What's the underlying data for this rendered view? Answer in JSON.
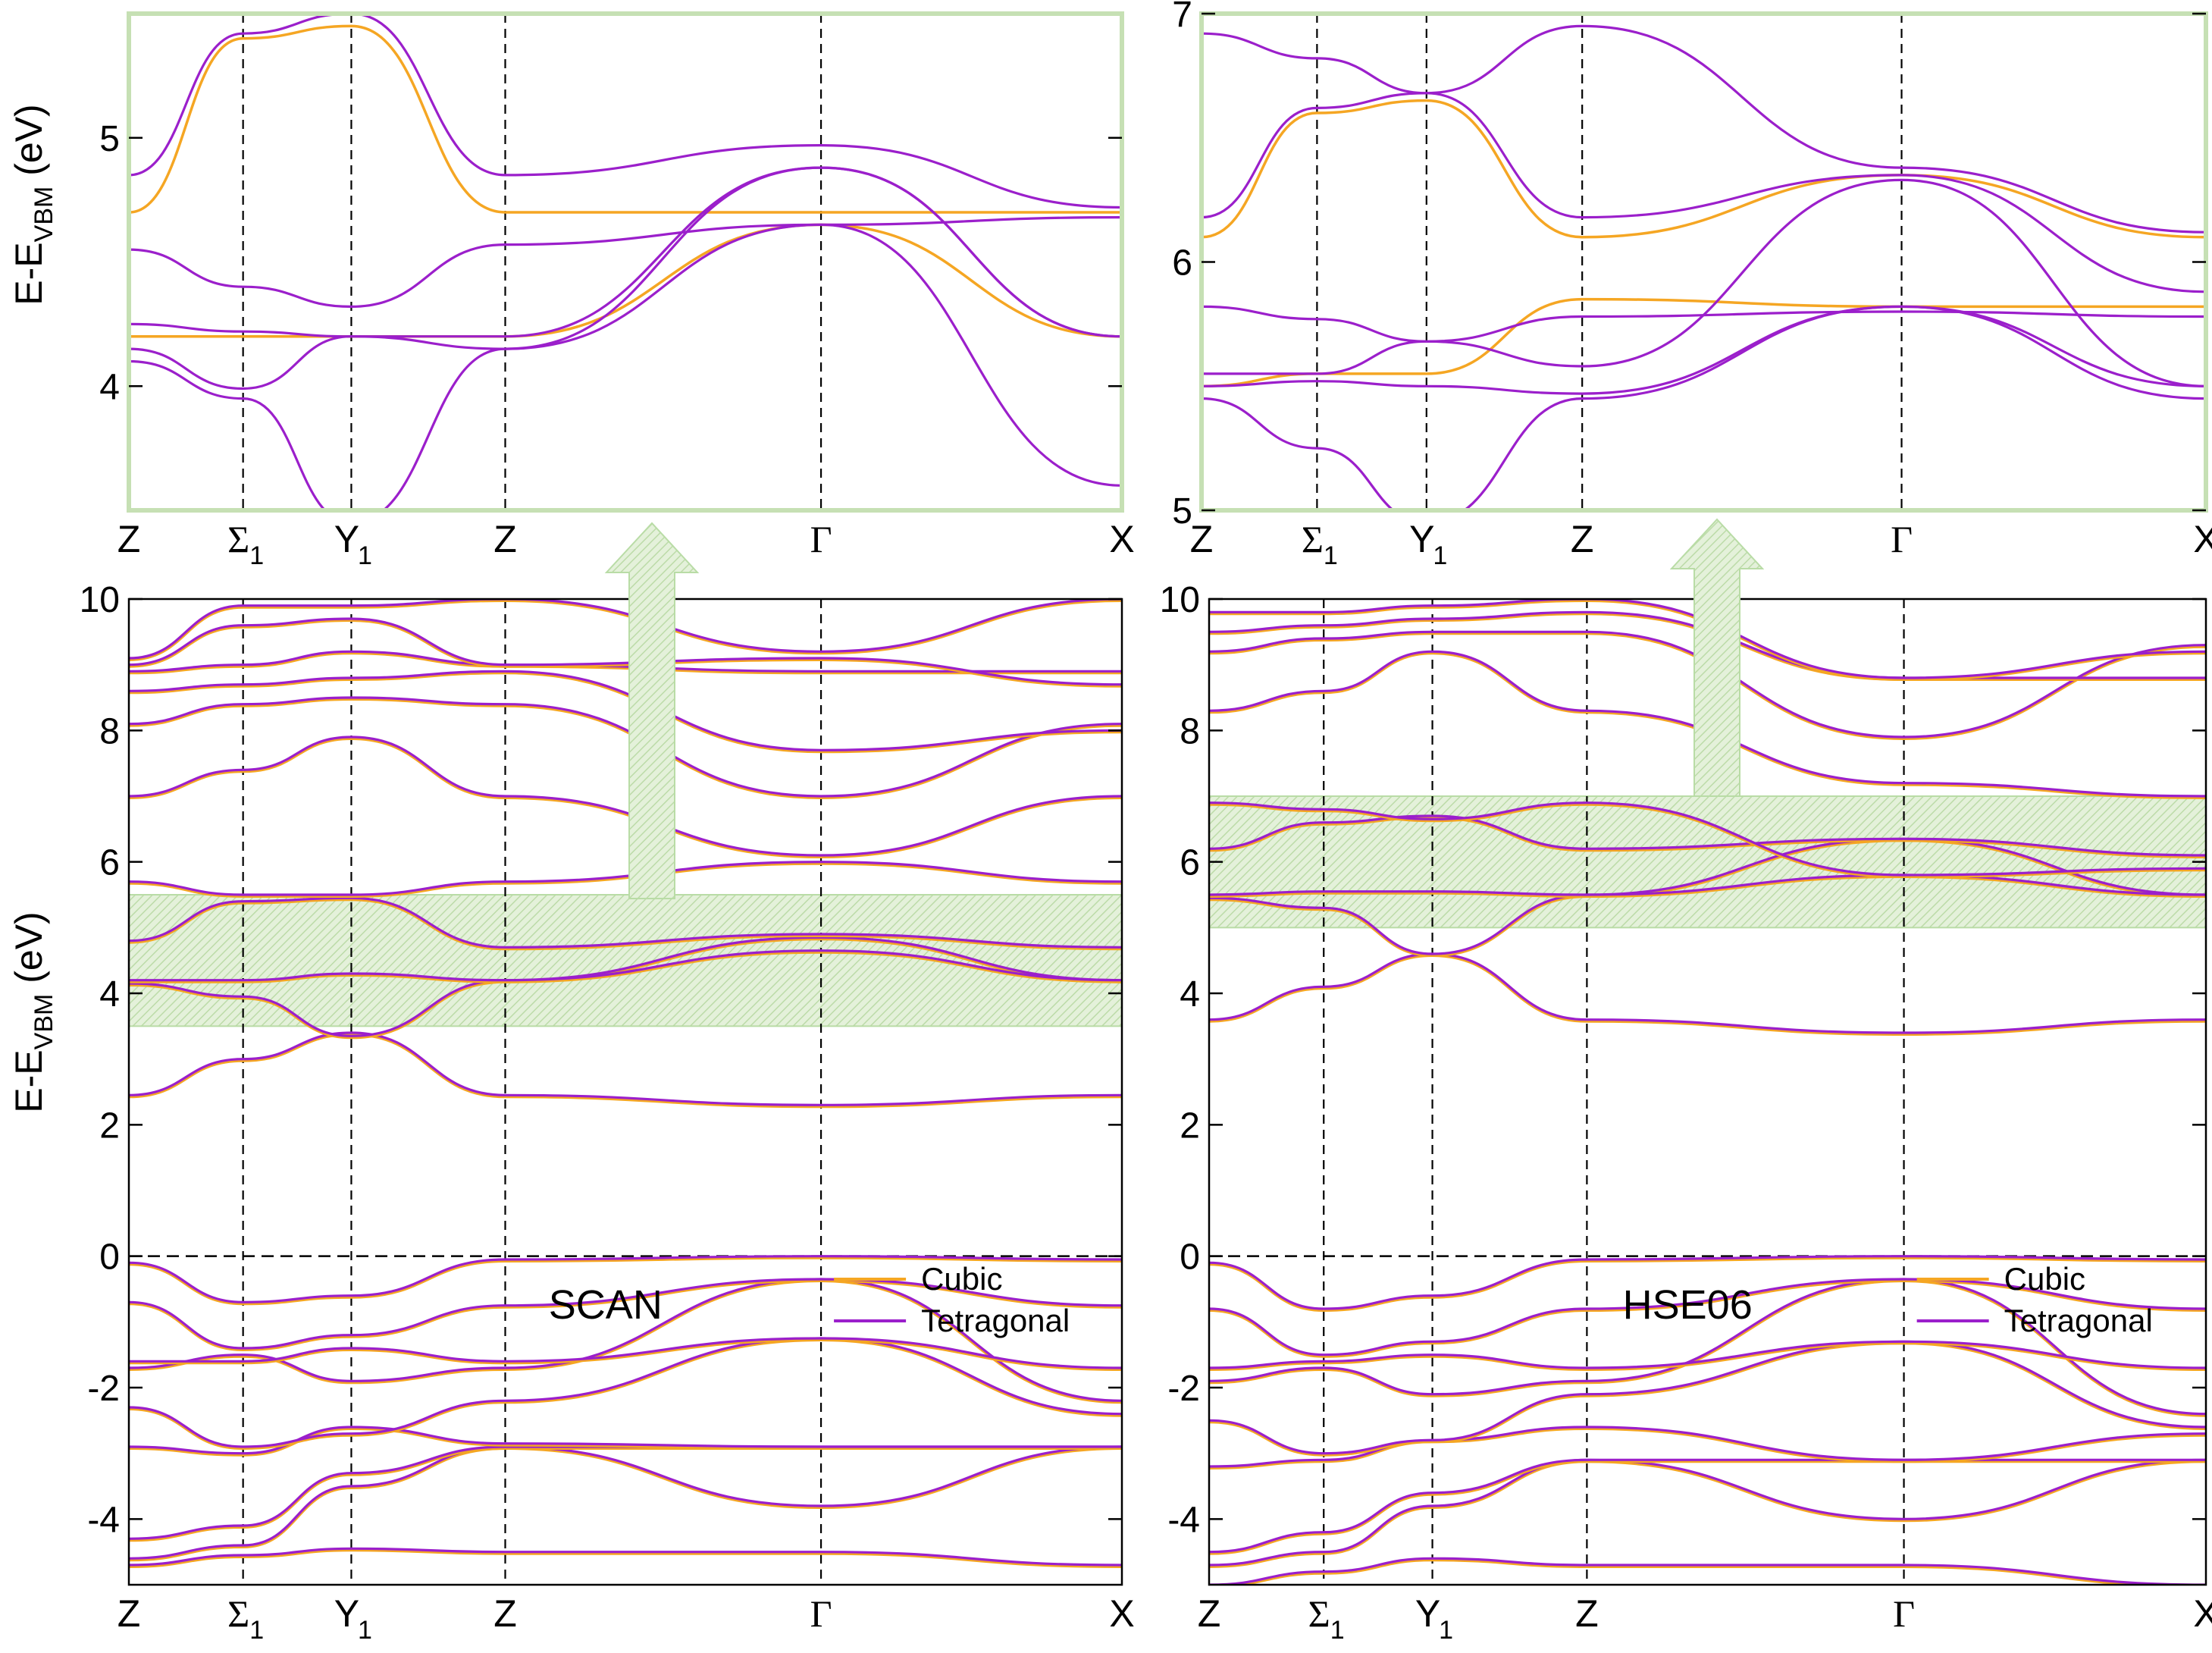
{
  "colors": {
    "cubic": "#F5A623",
    "tetragonal": "#9B1FCB",
    "highlight_fill": "#CFE8BF",
    "highlight_border": "#B9DCA6",
    "arrow": "#CFE8BF"
  },
  "y_axis_label": {
    "main": "E-E",
    "sub": "VBM",
    "unit": " (eV)"
  },
  "chart_data": [
    {
      "id": "scan-main",
      "type": "line",
      "title": "SCAN",
      "xlabel": "",
      "ylabel": "E-E_VBM (eV)",
      "ylim": [
        -5,
        10
      ],
      "yticks": [
        "-4",
        "-2",
        "0",
        "2",
        "4",
        "6",
        "8",
        "10"
      ],
      "kpoints": [
        "Z",
        "Σ1",
        "Y1",
        "Z",
        "Γ",
        "X"
      ],
      "kpoint_positions": [
        0,
        0.115,
        0.224,
        0.379,
        0.697,
        1.0
      ],
      "reference_line": 0,
      "highlight_band": [
        3.5,
        5.5
      ],
      "legend": [
        "Cubic",
        "Tetragonal"
      ],
      "series": [
        {
          "name": "Tetragonal",
          "values": [
            -4.7,
            -4.55,
            -4.45,
            -4.5,
            -4.5,
            -4.7
          ]
        },
        {
          "name": "Tetragonal",
          "values": [
            -4.6,
            -4.4,
            -3.5,
            -2.9,
            -3.8,
            -2.9
          ]
        },
        {
          "name": "Tetragonal",
          "values": [
            -4.3,
            -4.1,
            -3.3,
            -2.9,
            -2.9,
            -2.9
          ]
        },
        {
          "name": "Tetragonal",
          "values": [
            -2.9,
            -3.0,
            -2.6,
            -2.85,
            -2.9,
            -2.9
          ]
        },
        {
          "name": "Tetragonal",
          "values": [
            -2.3,
            -2.9,
            -2.7,
            -2.2,
            -1.25,
            -2.4
          ]
        },
        {
          "name": "Tetragonal",
          "values": [
            -1.7,
            -1.5,
            -1.9,
            -1.7,
            -0.35,
            -2.2
          ]
        },
        {
          "name": "Tetragonal",
          "values": [
            -1.6,
            -1.6,
            -1.4,
            -1.6,
            -1.25,
            -1.7
          ]
        },
        {
          "name": "Tetragonal",
          "values": [
            -0.7,
            -1.4,
            -1.2,
            -0.75,
            -0.35,
            -0.75
          ]
        },
        {
          "name": "Tetragonal",
          "values": [
            -0.1,
            -0.7,
            -0.6,
            -0.05,
            0.0,
            -0.05
          ]
        },
        {
          "name": "Tetragonal",
          "values": [
            2.45,
            3.0,
            3.4,
            2.45,
            2.3,
            2.45
          ]
        },
        {
          "name": "Tetragonal",
          "values": [
            4.15,
            3.95,
            3.35,
            4.2,
            4.85,
            4.2
          ]
        },
        {
          "name": "Tetragonal",
          "values": [
            4.2,
            4.2,
            4.3,
            4.2,
            4.65,
            4.2
          ]
        },
        {
          "name": "Tetragonal",
          "values": [
            4.8,
            5.4,
            5.45,
            4.7,
            4.9,
            4.7
          ]
        },
        {
          "name": "Tetragonal",
          "values": [
            5.7,
            5.5,
            5.5,
            5.7,
            6.0,
            5.7
          ]
        },
        {
          "name": "Tetragonal",
          "values": [
            7.0,
            7.4,
            7.9,
            7.0,
            6.1,
            7.0
          ]
        },
        {
          "name": "Tetragonal",
          "values": [
            8.1,
            8.4,
            8.5,
            8.4,
            7.0,
            8.1
          ]
        },
        {
          "name": "Tetragonal",
          "values": [
            8.6,
            8.7,
            8.8,
            8.9,
            7.7,
            8.0
          ]
        },
        {
          "name": "Tetragonal",
          "values": [
            8.9,
            9.0,
            9.2,
            9.0,
            8.9,
            8.9
          ]
        },
        {
          "name": "Tetragonal",
          "values": [
            9.0,
            9.6,
            9.7,
            9.0,
            9.1,
            8.7
          ]
        },
        {
          "name": "Tetragonal",
          "values": [
            9.1,
            9.9,
            9.9,
            10.0,
            9.2,
            10.0
          ]
        }
      ]
    },
    {
      "id": "hse06-main",
      "type": "line",
      "title": "HSE06",
      "xlabel": "",
      "ylabel": "E-E_VBM (eV)",
      "ylim": [
        -5,
        10
      ],
      "yticks": [
        "-4",
        "-2",
        "0",
        "2",
        "4",
        "6",
        "8",
        "10"
      ],
      "kpoints": [
        "Z",
        "Σ1",
        "Y1",
        "Z",
        "Γ",
        "X"
      ],
      "kpoint_positions": [
        0,
        0.115,
        0.224,
        0.379,
        0.697,
        1.0
      ],
      "reference_line": 0,
      "highlight_band": [
        5.0,
        7.0
      ],
      "legend": [
        "Cubic",
        "Tetragonal"
      ],
      "series": [
        {
          "name": "Tetragonal",
          "values": [
            -5.0,
            -4.8,
            -4.6,
            -4.7,
            -4.7,
            -5.0
          ]
        },
        {
          "name": "Tetragonal",
          "values": [
            -4.7,
            -4.5,
            -3.8,
            -3.1,
            -4.0,
            -3.1
          ]
        },
        {
          "name": "Tetragonal",
          "values": [
            -4.5,
            -4.2,
            -3.6,
            -3.1,
            -3.1,
            -3.1
          ]
        },
        {
          "name": "Tetragonal",
          "values": [
            -3.2,
            -3.1,
            -2.8,
            -2.6,
            -3.1,
            -2.7
          ]
        },
        {
          "name": "Tetragonal",
          "values": [
            -2.5,
            -3.0,
            -2.8,
            -2.1,
            -1.3,
            -2.6
          ]
        },
        {
          "name": "Tetragonal",
          "values": [
            -1.9,
            -1.7,
            -2.1,
            -1.9,
            -0.35,
            -2.4
          ]
        },
        {
          "name": "Tetragonal",
          "values": [
            -1.7,
            -1.6,
            -1.5,
            -1.7,
            -1.3,
            -1.7
          ]
        },
        {
          "name": "Tetragonal",
          "values": [
            -0.8,
            -1.5,
            -1.3,
            -0.8,
            -0.35,
            -0.8
          ]
        },
        {
          "name": "Tetragonal",
          "values": [
            -0.1,
            -0.8,
            -0.6,
            -0.05,
            0.0,
            -0.05
          ]
        },
        {
          "name": "Tetragonal",
          "values": [
            3.6,
            4.1,
            4.6,
            3.6,
            3.4,
            3.6
          ]
        },
        {
          "name": "Tetragonal",
          "values": [
            5.45,
            5.3,
            4.6,
            5.5,
            6.35,
            5.5
          ]
        },
        {
          "name": "Tetragonal",
          "values": [
            5.5,
            5.55,
            5.55,
            5.5,
            5.8,
            5.5
          ]
        },
        {
          "name": "Tetragonal",
          "values": [
            6.2,
            6.6,
            6.7,
            6.2,
            6.35,
            6.1
          ]
        },
        {
          "name": "Tetragonal",
          "values": [
            6.9,
            6.8,
            6.65,
            6.9,
            5.8,
            5.9
          ]
        },
        {
          "name": "Tetragonal",
          "values": [
            8.3,
            8.6,
            9.2,
            8.3,
            7.2,
            7.0
          ]
        },
        {
          "name": "Tetragonal",
          "values": [
            9.2,
            9.4,
            9.5,
            9.5,
            7.9,
            9.3
          ]
        },
        {
          "name": "Tetragonal",
          "values": [
            9.5,
            9.6,
            9.7,
            9.8,
            8.8,
            8.8
          ]
        },
        {
          "name": "Tetragonal",
          "values": [
            9.8,
            9.8,
            9.9,
            10.0,
            8.8,
            9.2
          ]
        }
      ]
    },
    {
      "id": "scan-inset",
      "type": "line",
      "title": "",
      "xlabel": "",
      "ylabel": "E-E_VBM (eV)",
      "ylim": [
        3.5,
        5.5
      ],
      "yticks": [
        "4",
        "5"
      ],
      "kpoints": [
        "Z",
        "Σ1",
        "Y1",
        "Z",
        "Γ",
        "X"
      ],
      "kpoint_positions": [
        0,
        0.115,
        0.224,
        0.379,
        0.697,
        1.0
      ],
      "series": [
        {
          "name": "Cubic",
          "values": [
            4.7,
            5.4,
            5.45,
            4.7,
            4.7,
            4.7
          ]
        },
        {
          "name": "Cubic",
          "values": [
            4.2,
            4.2,
            4.2,
            4.2,
            4.65,
            4.2
          ]
        },
        {
          "name": "Tetragonal",
          "values": [
            4.85,
            5.42,
            5.5,
            4.85,
            4.97,
            4.72
          ]
        },
        {
          "name": "Tetragonal",
          "values": [
            4.55,
            4.4,
            4.32,
            4.57,
            4.65,
            4.68
          ]
        },
        {
          "name": "Tetragonal",
          "values": [
            4.25,
            4.22,
            4.2,
            4.2,
            4.88,
            4.2
          ]
        },
        {
          "name": "Tetragonal",
          "values": [
            4.15,
            3.99,
            4.2,
            4.15,
            4.88,
            4.2
          ]
        },
        {
          "name": "Tetragonal",
          "values": [
            4.1,
            3.95,
            3.45,
            4.15,
            4.65,
            3.6
          ]
        }
      ]
    },
    {
      "id": "hse06-inset",
      "type": "line",
      "title": "",
      "xlabel": "",
      "ylabel": "",
      "ylim": [
        5,
        7
      ],
      "yticks": [
        "5",
        "6",
        "7"
      ],
      "kpoints": [
        "Z",
        "Σ1",
        "Y1",
        "Z",
        "Γ",
        "X"
      ],
      "kpoint_positions": [
        0,
        0.115,
        0.224,
        0.379,
        0.697,
        1.0
      ],
      "series": [
        {
          "name": "Cubic",
          "values": [
            6.1,
            6.6,
            6.65,
            6.1,
            6.35,
            6.1
          ]
        },
        {
          "name": "Cubic",
          "values": [
            5.5,
            5.55,
            5.55,
            5.85,
            5.82,
            5.82
          ]
        },
        {
          "name": "Tetragonal",
          "values": [
            6.92,
            6.82,
            6.68,
            6.95,
            6.38,
            6.12
          ]
        },
        {
          "name": "Tetragonal",
          "values": [
            6.18,
            6.62,
            6.68,
            6.18,
            6.35,
            5.88
          ]
        },
        {
          "name": "Tetragonal",
          "values": [
            5.82,
            5.77,
            5.68,
            5.78,
            5.8,
            5.78
          ]
        },
        {
          "name": "Tetragonal",
          "values": [
            5.55,
            5.55,
            5.68,
            5.58,
            6.33,
            5.5
          ]
        },
        {
          "name": "Tetragonal",
          "values": [
            5.5,
            5.52,
            5.5,
            5.47,
            5.82,
            5.5
          ]
        },
        {
          "name": "Tetragonal",
          "values": [
            5.45,
            5.25,
            4.95,
            5.45,
            5.82,
            5.45
          ]
        }
      ]
    }
  ]
}
